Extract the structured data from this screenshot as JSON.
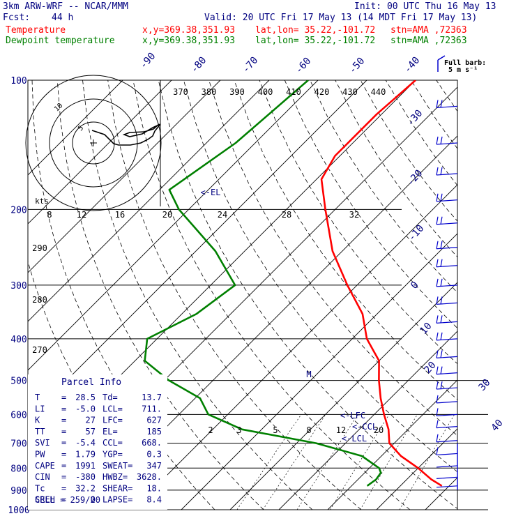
{
  "header": {
    "model": "3km ARW-WRF -- NCAR/MMM",
    "init": "Init: 00 UTC Thu 16 May 13",
    "fcst_label": "Fcst:",
    "fcst_value": "44 h",
    "valid": "Valid: 20 UTC Fri 17 May 13 (14 MDT Fri 17 May 13)",
    "temp_label": "Temperature",
    "temp_xy": "x,y=369.38,351.93",
    "temp_latlon": "lat,lon= 35.22,-101.72",
    "temp_stn": "stn=AMA ,72363",
    "dew_label": "Dewpoint temperature",
    "dew_xy": "x,y=369.38,351.93",
    "dew_latlon": "lat,lon= 35.22,-101.72",
    "dew_stn": "stn=AMA ,72363",
    "barb_key_1": "Full barb:",
    "barb_key_2": "5 m s⁻¹"
  },
  "colors": {
    "temperature": "#ff0000",
    "dewpoint": "#008000",
    "text": "#000080",
    "grid": "#000000",
    "barbs": "#0000cc"
  },
  "chart_data": {
    "type": "line",
    "title": "",
    "xlabel": "",
    "ylabel": "",
    "y_scale": "log-pressure",
    "pressure_levels": [
      "100",
      "200",
      "300",
      "400",
      "500",
      "600",
      "700",
      "800",
      "900",
      "1000"
    ],
    "isotherm_labels": [
      "-90",
      "-80",
      "-70",
      "-60",
      "-50",
      "-40",
      "-30",
      "-20",
      "-10",
      "0",
      "10",
      "20",
      "30",
      "40"
    ],
    "theta_labels": [
      "370",
      "380",
      "390",
      "400",
      "410",
      "420",
      "430",
      "440"
    ],
    "theta_left_labels": [
      "290",
      "280",
      "270"
    ],
    "hodograph": {
      "kts_label": "kts",
      "speed_ticks": [
        "8",
        "12",
        "16",
        "20",
        "24",
        "28",
        "32"
      ],
      "ring_labels": [
        "5",
        "10"
      ]
    },
    "mixing_ratio_labels": [
      "2",
      "3",
      "5",
      "8",
      "12",
      "20"
    ],
    "annotations": [
      "<-EL",
      "<-LFC",
      "<-CCL",
      "<-LCL",
      "M"
    ],
    "series": [
      {
        "name": "Temperature",
        "color": "#ff0000",
        "points": [
          [
            100,
            -60
          ],
          [
            120,
            -61
          ],
          [
            150,
            -61
          ],
          [
            170,
            -59
          ],
          [
            200,
            -52
          ],
          [
            250,
            -42
          ],
          [
            300,
            -32
          ],
          [
            350,
            -23
          ],
          [
            400,
            -17
          ],
          [
            450,
            -10
          ],
          [
            500,
            -6
          ],
          [
            550,
            -2
          ],
          [
            600,
            2
          ],
          [
            650,
            6
          ],
          [
            700,
            9
          ],
          [
            750,
            14
          ],
          [
            800,
            20
          ],
          [
            850,
            25
          ],
          [
            880,
            28.5
          ]
        ]
      },
      {
        "name": "Dewpoint temperature",
        "color": "#008000",
        "points": [
          [
            100,
            -82
          ],
          [
            140,
            -84
          ],
          [
            180,
            -88
          ],
          [
            200,
            -82
          ],
          [
            250,
            -66
          ],
          [
            300,
            -55
          ],
          [
            350,
            -57
          ],
          [
            400,
            -62
          ],
          [
            450,
            -58
          ],
          [
            500,
            -49
          ],
          [
            550,
            -39
          ],
          [
            600,
            -34
          ],
          [
            650,
            -24
          ],
          [
            700,
            -6
          ],
          [
            750,
            6
          ],
          [
            800,
            12
          ],
          [
            820,
            13.3
          ],
          [
            850,
            13.7
          ],
          [
            880,
            13.2
          ]
        ]
      }
    ]
  },
  "parcel_info": {
    "title": "Parcel Info",
    "rows": [
      {
        "l1": "T",
        "v1": "28.5",
        "l2": "Td",
        "v2": "13.7"
      },
      {
        "l1": "LI",
        "v1": "-5.0",
        "l2": "LCL",
        "v2": "711."
      },
      {
        "l1": "K",
        "v1": "27",
        "l2": "LFC",
        "v2": "627"
      },
      {
        "l1": "TT",
        "v1": "57",
        "l2": "EL",
        "v2": "185"
      },
      {
        "l1": "SVI",
        "v1": "-5.4",
        "l2": "CCL",
        "v2": "668."
      },
      {
        "l1": "PW",
        "v1": "1.79",
        "l2": "YGP",
        "v2": "0.3"
      },
      {
        "l1": "CAPE",
        "v1": "1991",
        "l2": "SWEAT",
        "v2": "347"
      },
      {
        "l1": "CIN",
        "v1": "-380",
        "l2": "HWBZ",
        "v2": "3628."
      },
      {
        "l1": "Tc",
        "v1": "32.2",
        "l2": "SHEAR",
        "v2": "18."
      },
      {
        "l1": "SREH",
        "v1": "0",
        "l2": "LAPSE",
        "v2": "8.4"
      }
    ],
    "cell": "CELL = 259/20"
  }
}
